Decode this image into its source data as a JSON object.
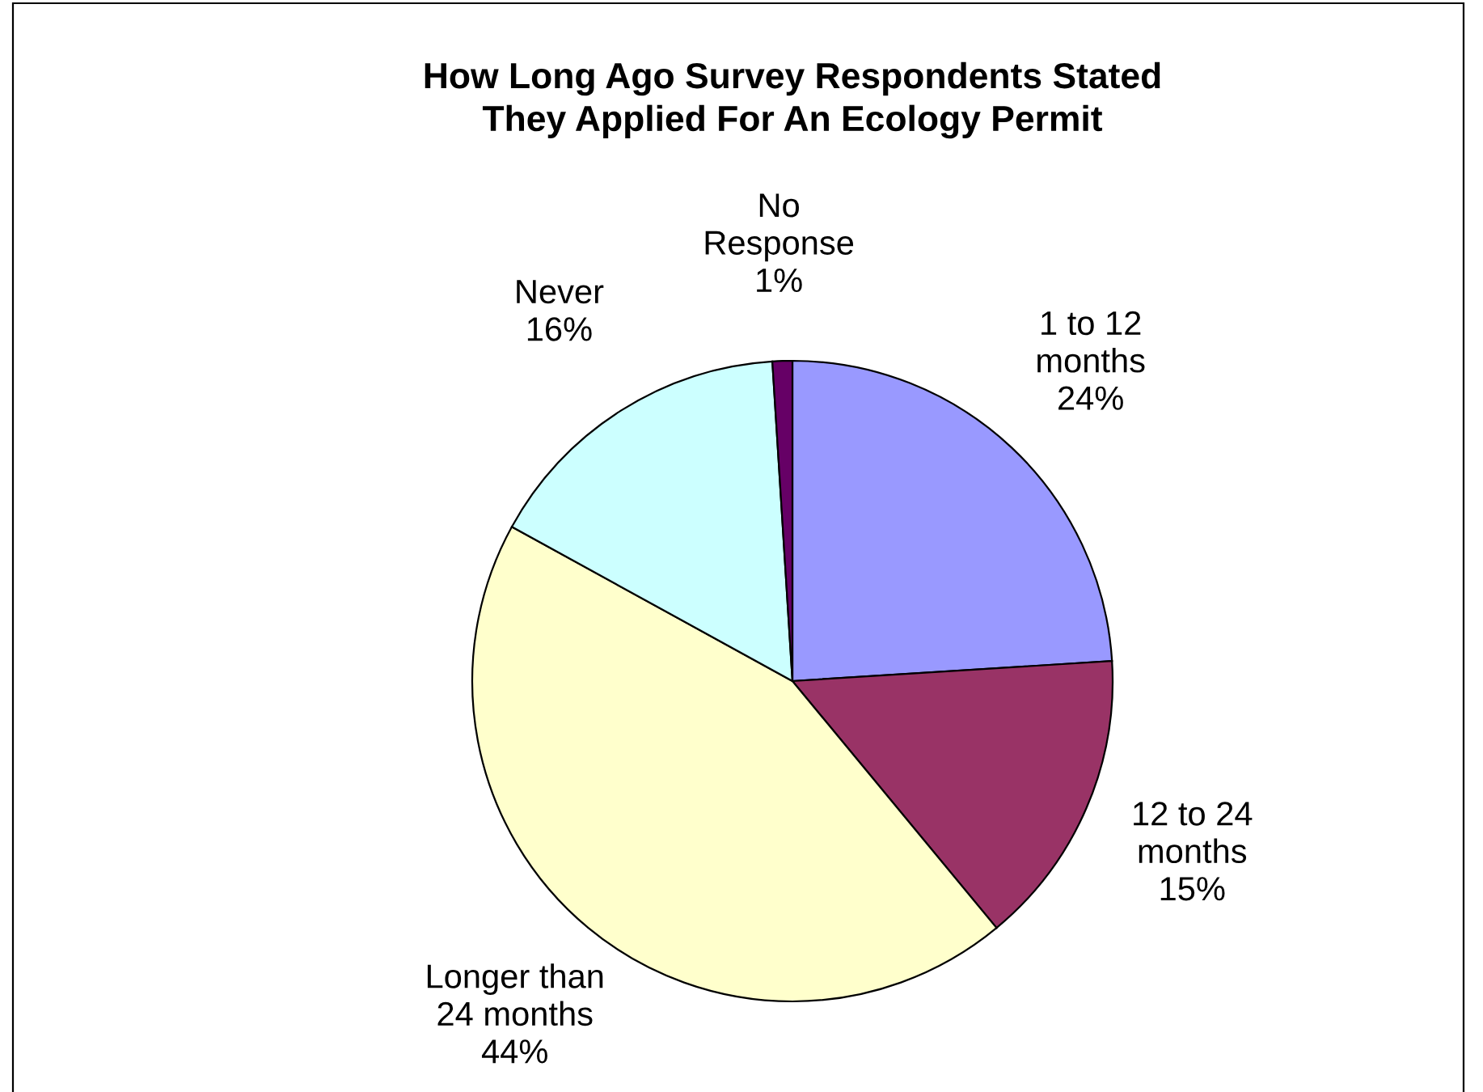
{
  "chart_data": {
    "type": "pie",
    "title": "How Long Ago Survey Respondents Stated\nThey Applied For An Ecology Permit",
    "categories": [
      "1 to 12\nmonths",
      "12 to 24\nmonths",
      "Longer than\n24 months",
      "Never",
      "No\nResponse"
    ],
    "values": [
      24,
      15,
      44,
      16,
      1
    ],
    "value_labels": [
      "24%",
      "15%",
      "44%",
      "16%",
      "1%"
    ],
    "colors": [
      "#9999ff",
      "#993366",
      "#ffffcc",
      "#ccffff",
      "#660066"
    ],
    "legend": false
  }
}
